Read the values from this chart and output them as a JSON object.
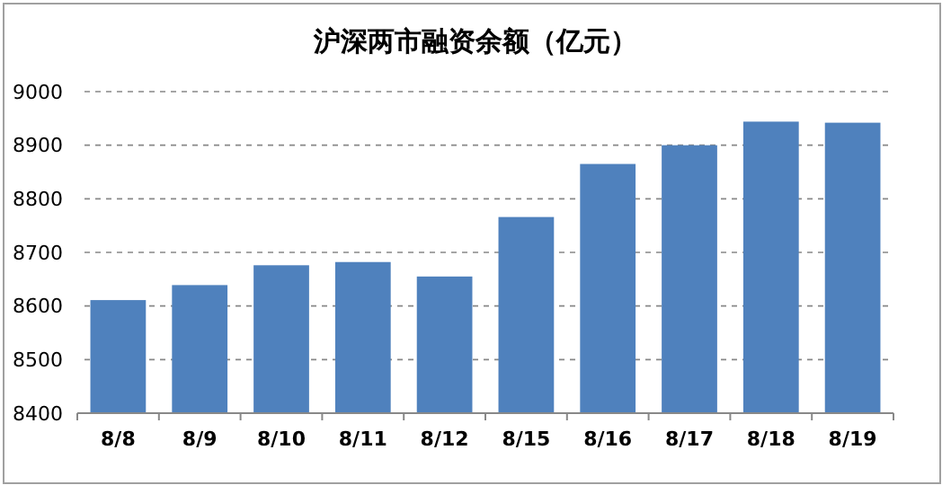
{
  "chart_data": {
    "type": "bar",
    "title": "沪深两市融资余额（亿元）",
    "categories": [
      "8/8",
      "8/9",
      "8/10",
      "8/11",
      "8/12",
      "8/15",
      "8/16",
      "8/17",
      "8/18",
      "8/19"
    ],
    "values": [
      8611,
      8639,
      8676,
      8682,
      8655,
      8766,
      8865,
      8900,
      8944,
      8942
    ],
    "color": "#4f81bd",
    "ylim": [
      8400,
      9000
    ],
    "yticks": [
      8400,
      8500,
      8600,
      8700,
      8800,
      8900,
      9000
    ],
    "grid": "y"
  }
}
